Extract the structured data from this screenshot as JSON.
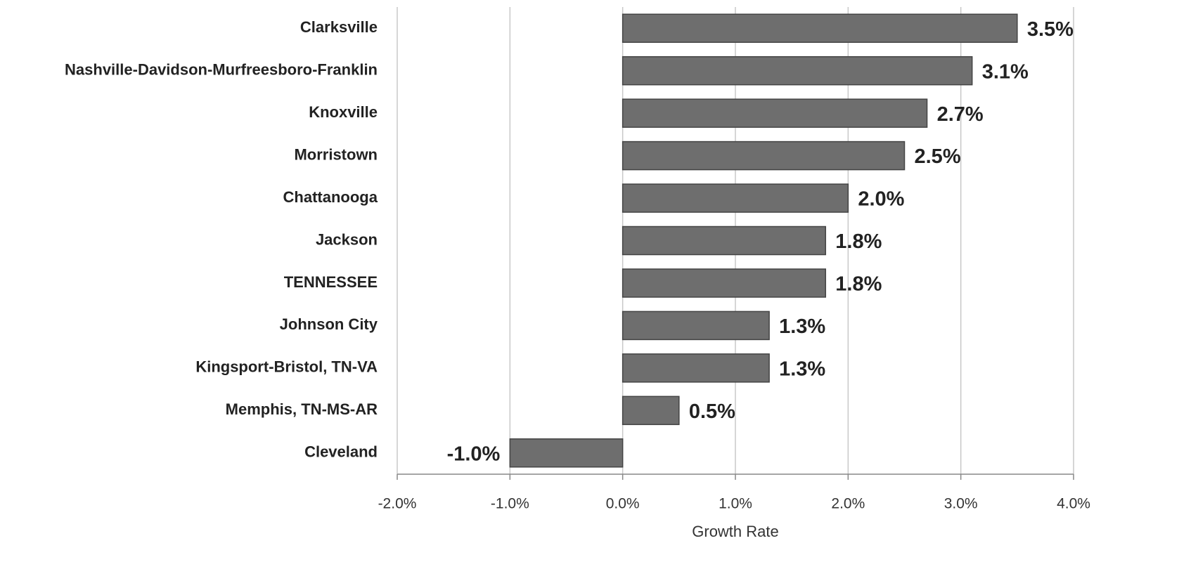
{
  "chart_data": {
    "type": "bar",
    "orientation": "horizontal",
    "x_label": "Growth Rate",
    "categories": [
      "Clarksville",
      "Nashville-Davidson-Murfreesboro-Franklin",
      "Knoxville",
      "Morristown",
      "Chattanooga",
      "Jackson",
      "TENNESSEE",
      "Johnson City",
      "Kingsport-Bristol, TN-VA",
      "Memphis, TN-MS-AR",
      "Cleveland"
    ],
    "values": [
      3.5,
      3.1,
      2.7,
      2.5,
      2.0,
      1.8,
      1.8,
      1.3,
      1.3,
      0.5,
      -1.0
    ],
    "value_labels": [
      "3.5%",
      "3.1%",
      "2.7%",
      "2.5%",
      "2.0%",
      "1.8%",
      "1.8%",
      "1.3%",
      "1.3%",
      "0.5%",
      "-1.0%"
    ],
    "color": "#6e6e6e",
    "xlim": [
      -2,
      4
    ],
    "xticks": [
      {
        "value": -2,
        "label": "-2.0%"
      },
      {
        "value": -1,
        "label": "-1.0%"
      },
      {
        "value": 0,
        "label": "0.0%"
      },
      {
        "value": 1,
        "label": "1.0%"
      },
      {
        "value": 2,
        "label": "2.0%"
      },
      {
        "value": 3,
        "label": "3.0%"
      },
      {
        "value": 4,
        "label": "4.0%"
      }
    ],
    "grid": true
  }
}
